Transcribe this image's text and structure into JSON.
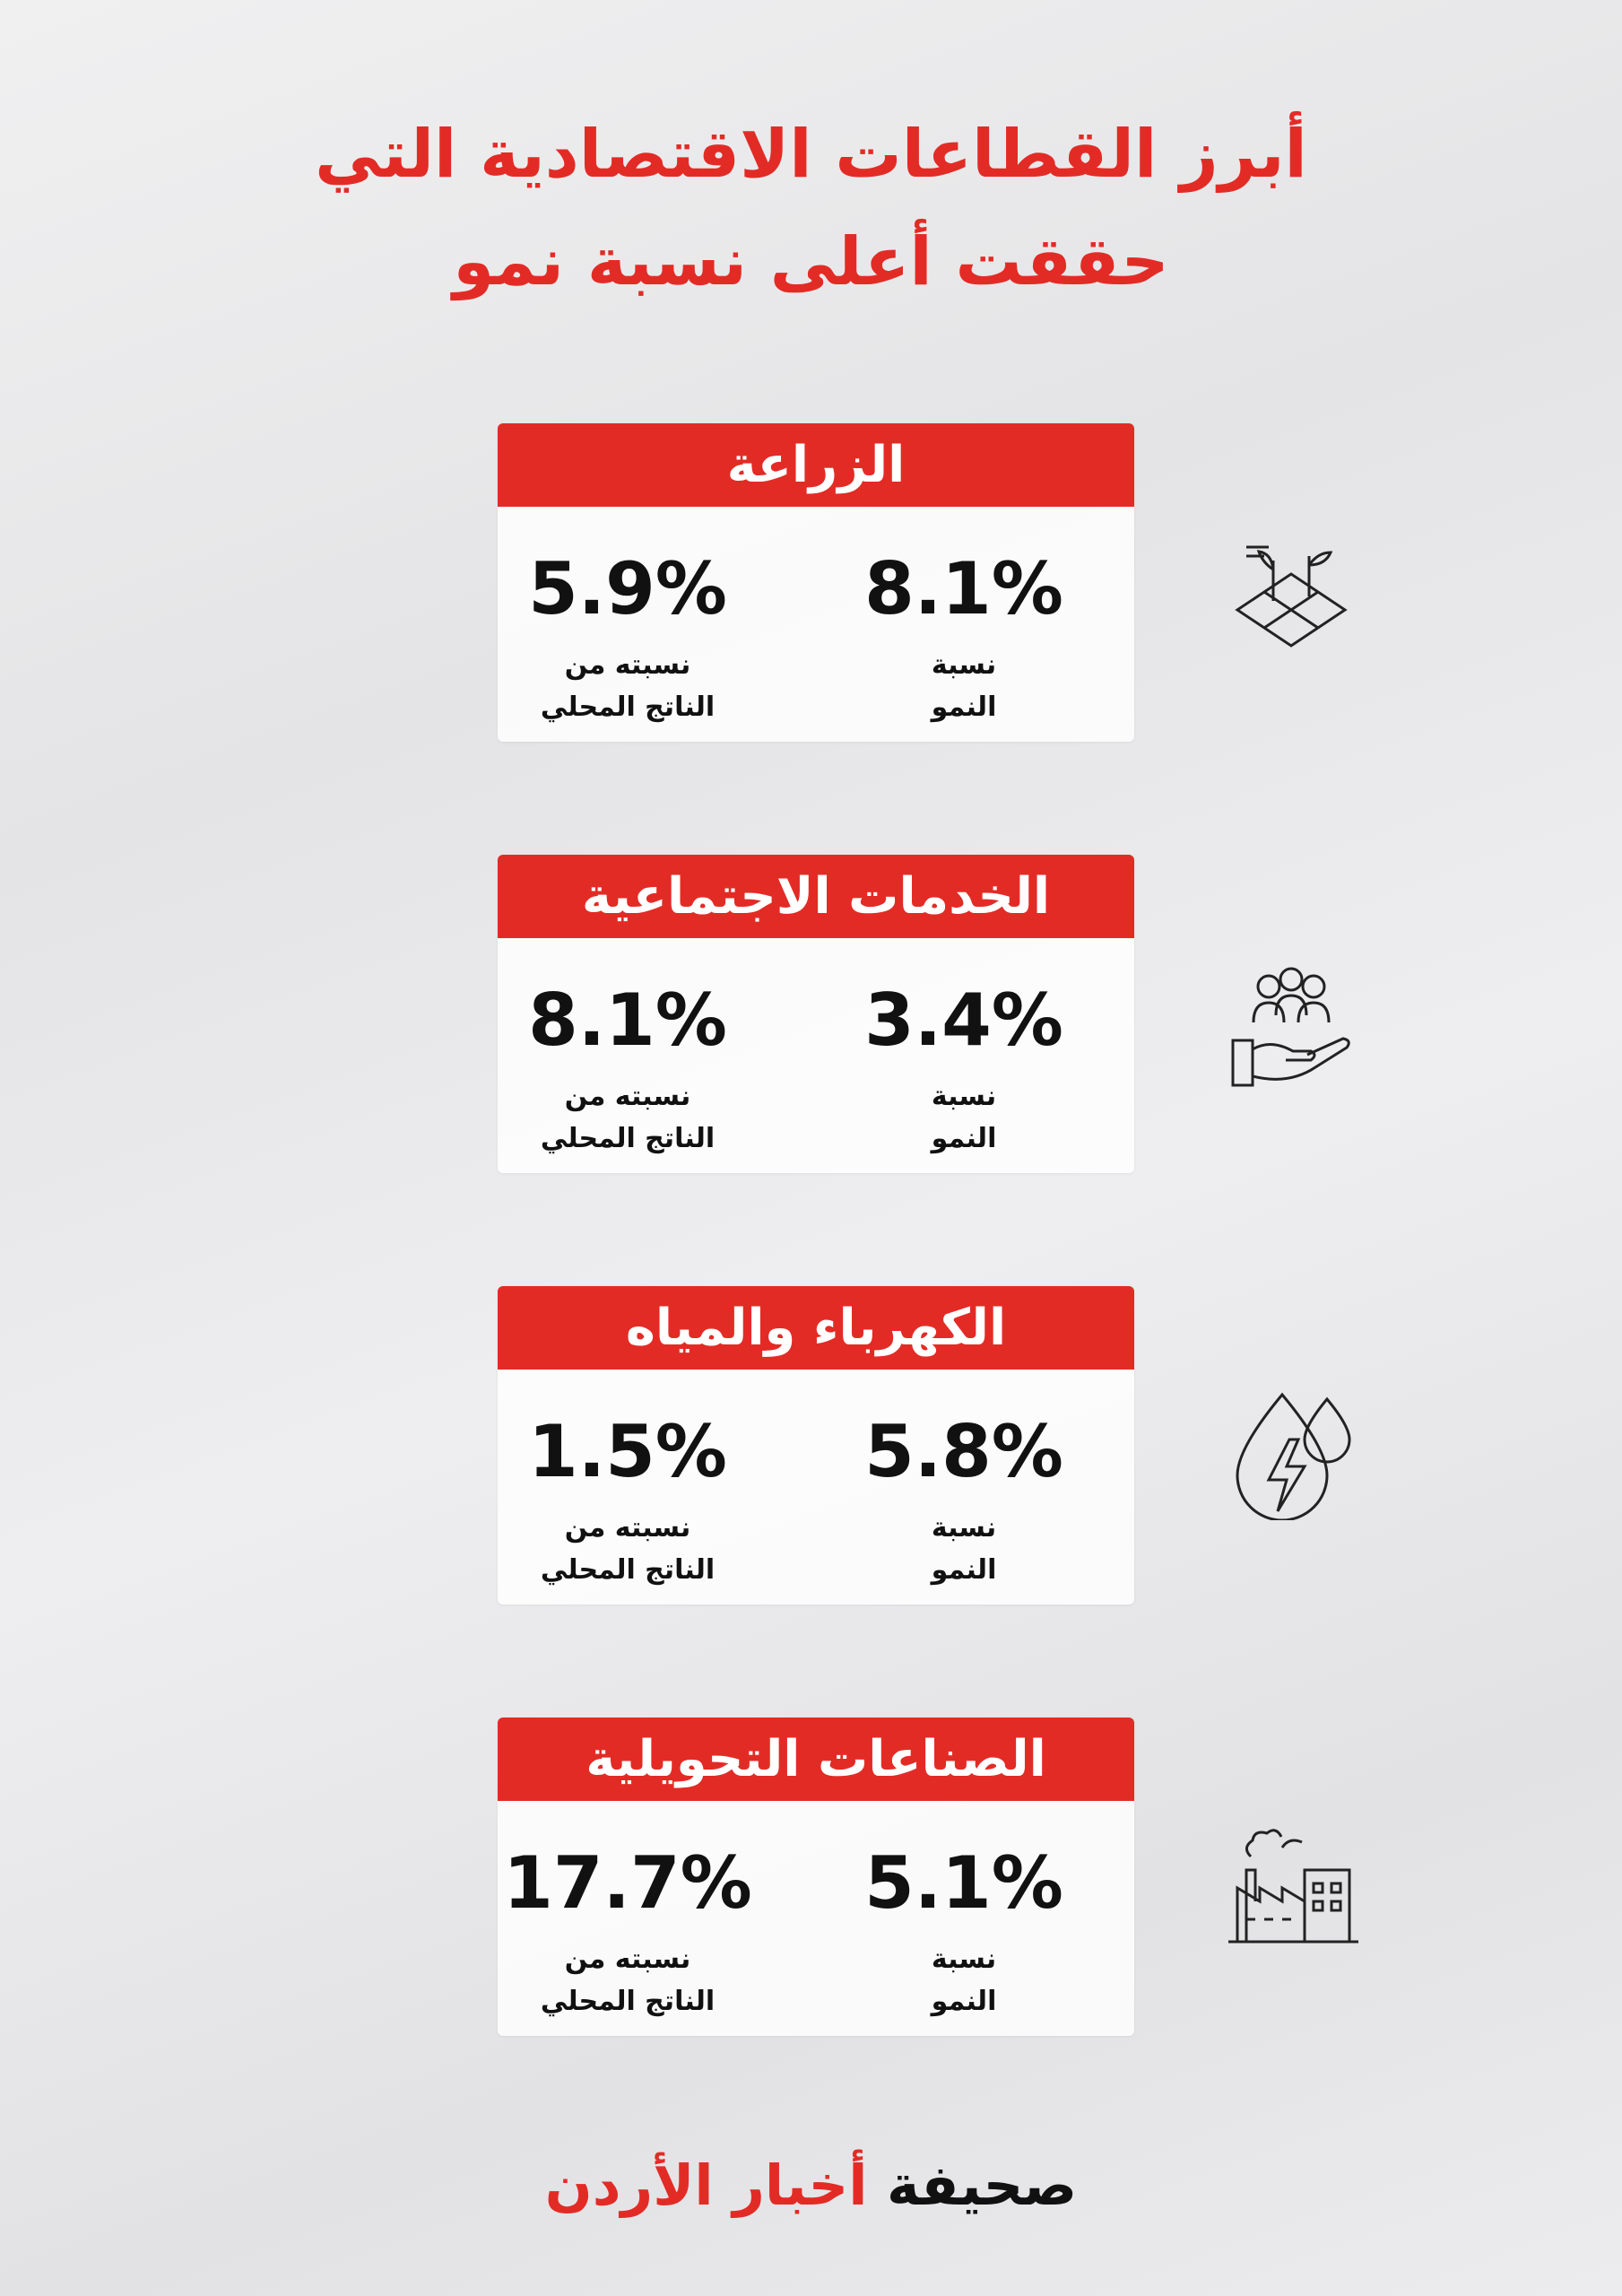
{
  "header": {
    "title_lines": [
      "أبرز القطاعات الاقتصادية التي",
      "حققت أعلى نسبة نمو"
    ]
  },
  "sectors": [
    {
      "name": "الزراعة",
      "growth": "8.1%",
      "growth_label": [
        "نسبة",
        "النمو"
      ],
      "gdp_share": "5.9%",
      "gdp_label": [
        "نسبته من",
        "الناتج المحلي"
      ]
    },
    {
      "name": "الخدمات الاجتماعية",
      "growth": "3.4%",
      "growth_label": [
        "نسبة",
        "النمو"
      ],
      "gdp_share": "8.1%",
      "gdp_label": [
        "نسبته من",
        "الناتج المحلي"
      ]
    },
    {
      "name": "الكهرباء والمياه",
      "growth": "5.8%",
      "growth_label": [
        "نسبة",
        "النمو"
      ],
      "gdp_share": "1.5%",
      "gdp_label": [
        "نسبته من",
        "الناتج المحلي"
      ]
    },
    {
      "name": "الصناعات التحويلية",
      "growth": "5.1%",
      "growth_label": [
        "نسبة",
        "النمو"
      ],
      "gdp_share": "17.7%",
      "gdp_label": [
        "نسبته من",
        "الناتج المحلي"
      ]
    }
  ],
  "footer": {
    "brand_prefix": "صحيفة",
    "brand_name": "أخبار الأردن"
  }
}
